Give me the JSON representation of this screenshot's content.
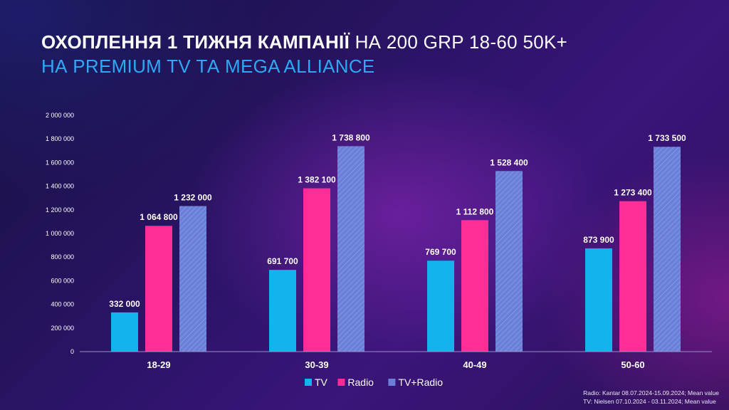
{
  "title": {
    "line1_bold": "ОХОПЛЕННЯ 1 ТИЖНЯ КАМПАНІЇ",
    "line1_rest": "НА 200 GRP 18-60 50K+",
    "line2": "НА PREMIUM TV ТА MEGA ALLIANCE"
  },
  "footnote": {
    "line1": "Radio: Kantar 08.07.2024-15.09.2024; Mean value",
    "line2": "TV: Nielsen 07.10.2024 - 03.11.2024; Mean value"
  },
  "colors": {
    "tv": "#12b4ee",
    "radio": "#ff2d95",
    "tv_radio": "#6a7fd8"
  },
  "chart_data": {
    "type": "bar",
    "categories": [
      "18-29",
      "30-39",
      "40-49",
      "50-60"
    ],
    "series": [
      {
        "name": "TV",
        "values": [
          332000,
          691700,
          769700,
          873900
        ],
        "labels": [
          "332 000",
          "691 700",
          "769 700",
          "873 900"
        ]
      },
      {
        "name": "Radio",
        "values": [
          1064800,
          1382100,
          1112800,
          1273400
        ],
        "labels": [
          "1 064 800",
          "1 382 100",
          "1 112 800",
          "1 273 400"
        ]
      },
      {
        "name": "TV+Radio",
        "values": [
          1232000,
          1738800,
          1528400,
          1733500
        ],
        "labels": [
          "1 232 000",
          "1 738 800",
          "1 528 400",
          "1 733 500"
        ]
      }
    ],
    "ylim": [
      0,
      2000000
    ],
    "yticks": [
      0,
      200000,
      400000,
      600000,
      800000,
      1000000,
      1200000,
      1400000,
      1600000,
      1800000,
      2000000
    ],
    "ytick_labels": [
      "0",
      "200 000",
      "400 000",
      "600 000",
      "800 000",
      "1 000 000",
      "1 200 000",
      "1 400 000",
      "1 600 000",
      "1 800 000",
      "2 000 000"
    ],
    "legend_position": "bottom",
    "grid": false
  }
}
